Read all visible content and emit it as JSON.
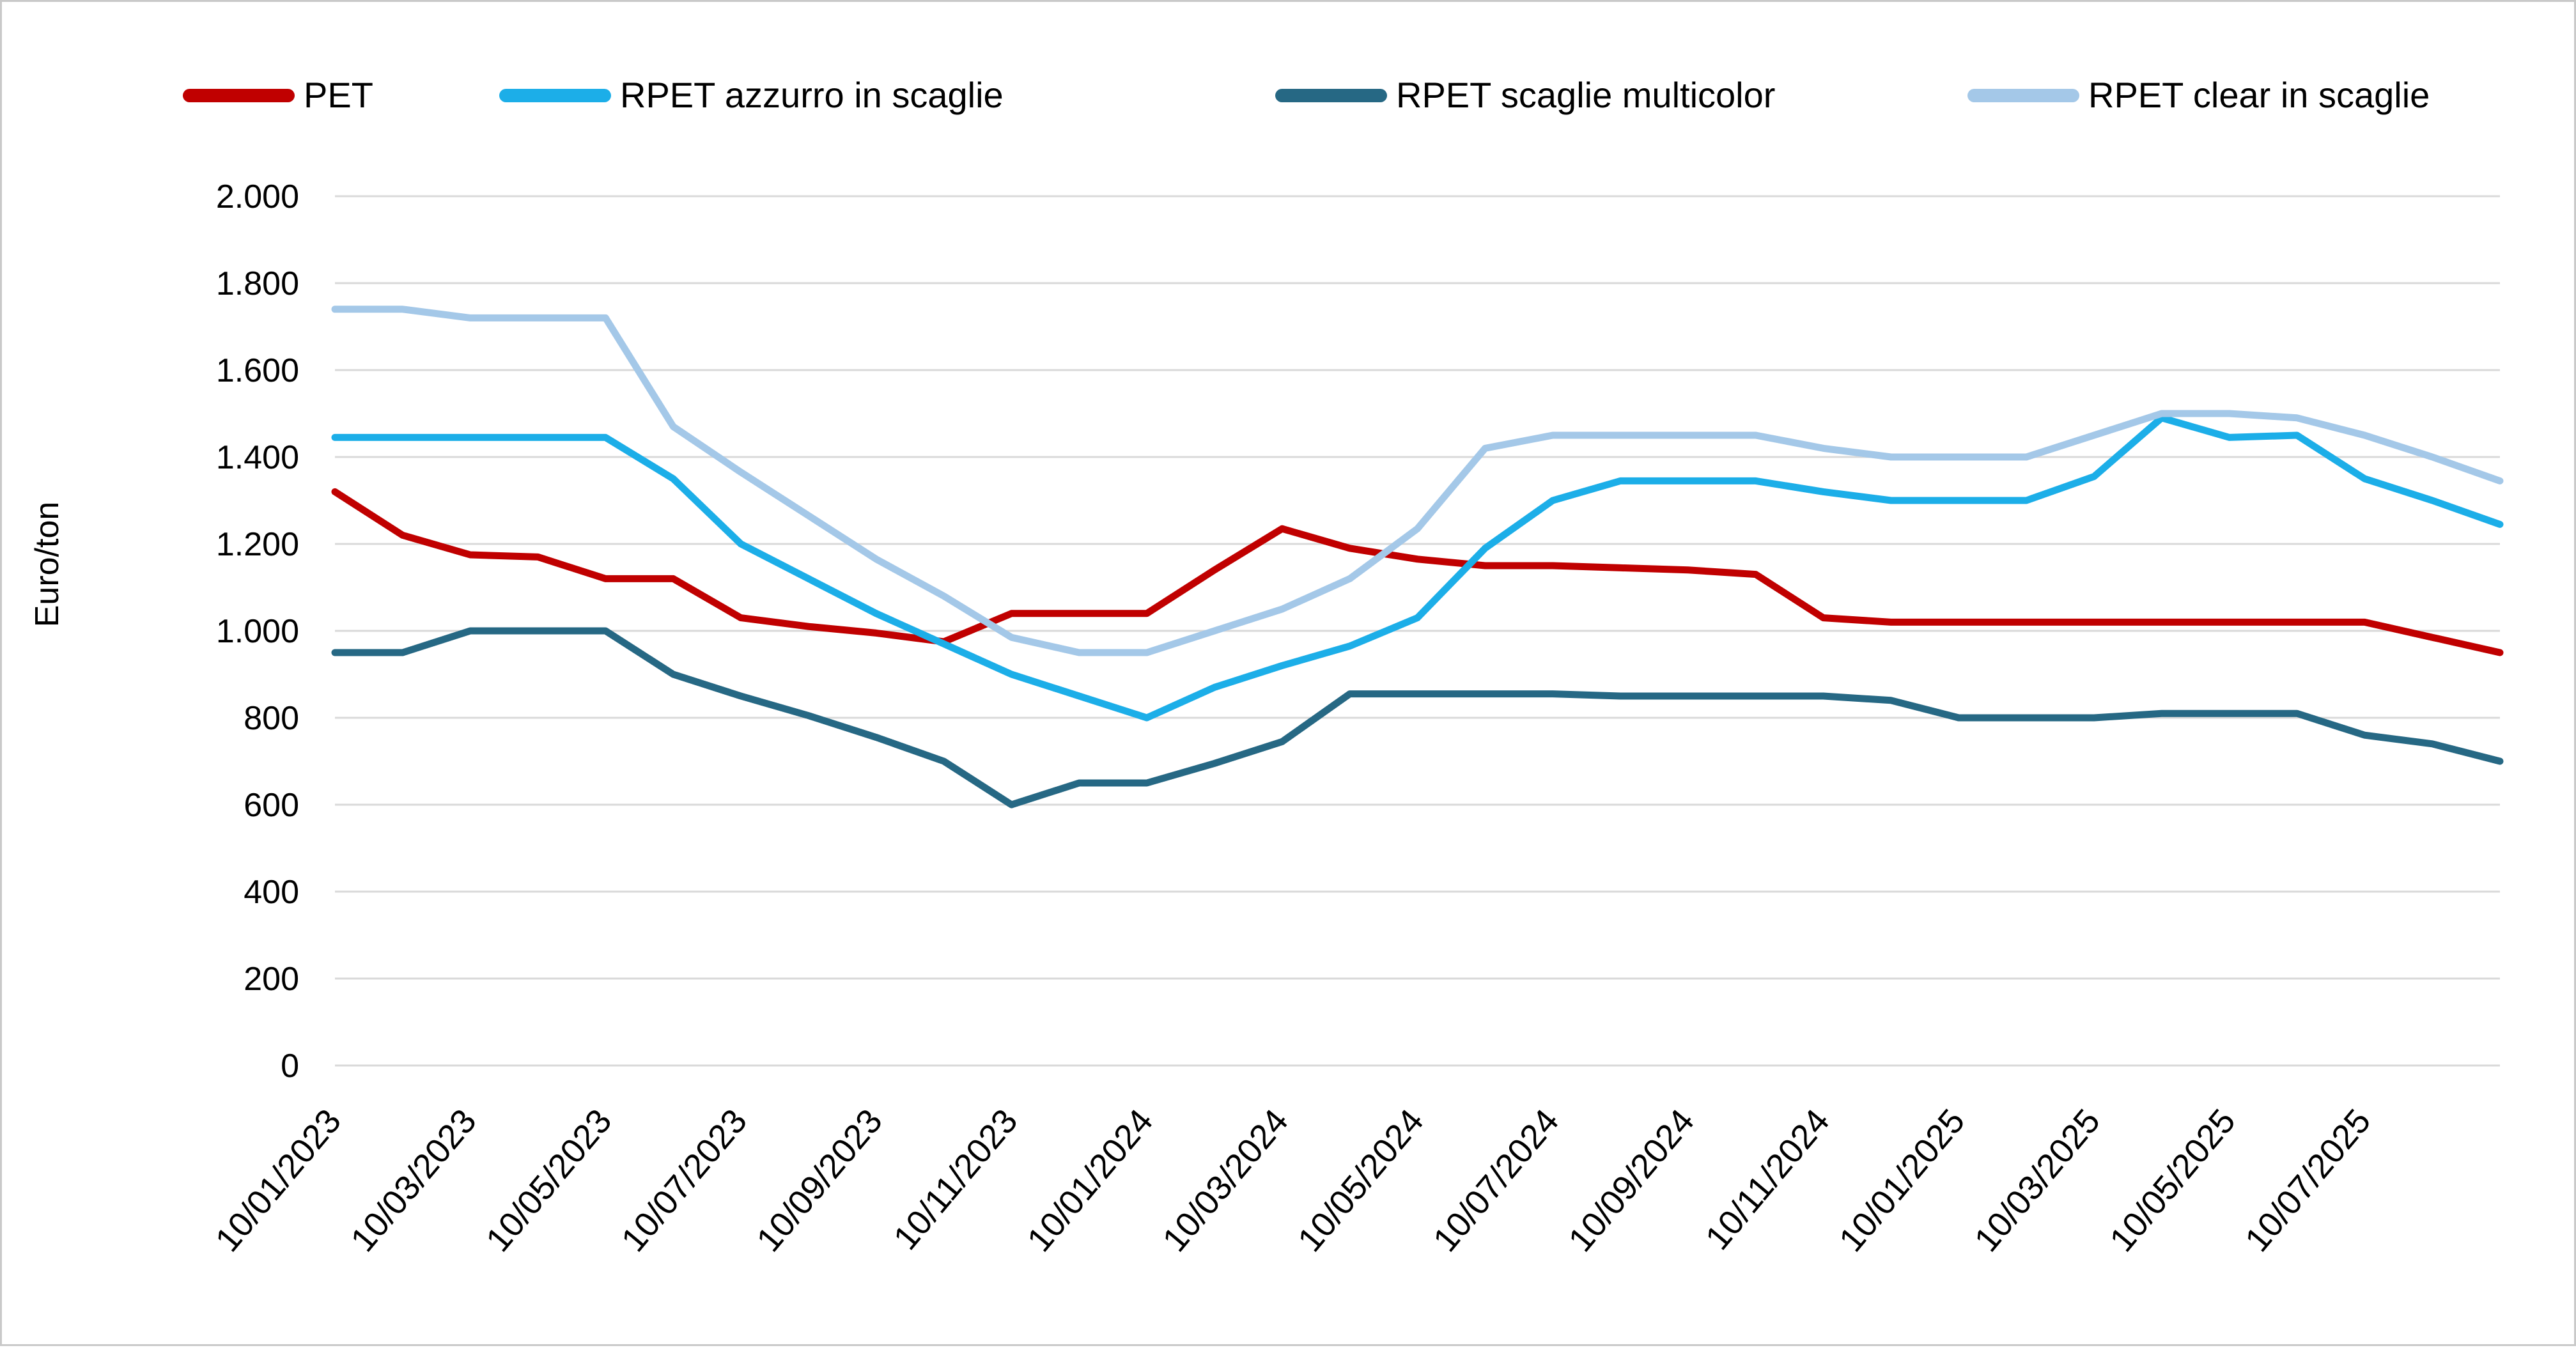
{
  "y_axis_title": "Euro/ton",
  "legend": [
    {
      "label": "PET",
      "color": "#c00000"
    },
    {
      "label": "RPET azzurro in scaglie",
      "color": "#1caee8"
    },
    {
      "label": "RPET scaglie multicolor",
      "color": "#266884"
    },
    {
      "label": "RPET clear in scaglie",
      "color": "#a4c8e8"
    }
  ],
  "chart_data": {
    "type": "line",
    "title": "",
    "xlabel": "",
    "ylabel": "Euro/ton",
    "ylim": [
      0,
      2000
    ],
    "grid": "horizontal",
    "legend_position": "top",
    "x_tick_labels": [
      "10/01/2023",
      "10/03/2023",
      "10/05/2023",
      "10/07/2023",
      "10/09/2023",
      "10/11/2023",
      "10/01/2024",
      "10/03/2024",
      "10/05/2024",
      "10/07/2024",
      "10/09/2024",
      "10/11/2024",
      "10/01/2025",
      "10/03/2025",
      "10/05/2025",
      "10/07/2025"
    ],
    "label_interval": 2,
    "categories": [
      "10/01/2023",
      "10/02/2023",
      "10/03/2023",
      "10/04/2023",
      "10/05/2023",
      "10/06/2023",
      "10/07/2023",
      "10/08/2023",
      "10/09/2023",
      "10/10/2023",
      "10/11/2023",
      "10/12/2023",
      "10/01/2024",
      "10/02/2024",
      "10/03/2024",
      "10/04/2024",
      "10/05/2024",
      "10/06/2024",
      "10/07/2024",
      "10/08/2024",
      "10/09/2024",
      "10/10/2024",
      "10/11/2024",
      "10/12/2024",
      "10/01/2025",
      "10/02/2025",
      "10/03/2025",
      "10/04/2025",
      "10/05/2025",
      "10/06/2025",
      "10/07/2025",
      "10/08/2025",
      "10/09/2025"
    ],
    "y_ticks": [
      {
        "value": 0,
        "label": "0"
      },
      {
        "value": 200,
        "label": "200"
      },
      {
        "value": 400,
        "label": "400"
      },
      {
        "value": 600,
        "label": "600"
      },
      {
        "value": 800,
        "label": "800"
      },
      {
        "value": 1000,
        "label": "1.000"
      },
      {
        "value": 1200,
        "label": "1.200"
      },
      {
        "value": 1400,
        "label": "1.400"
      },
      {
        "value": 1600,
        "label": "1.600"
      },
      {
        "value": 1800,
        "label": "1.800"
      },
      {
        "value": 2000,
        "label": "2.000"
      }
    ],
    "series": [
      {
        "name": "PET",
        "color": "#c00000",
        "values": [
          1320,
          1220,
          1175,
          1170,
          1120,
          1120,
          1030,
          1010,
          995,
          975,
          1040,
          1040,
          1040,
          1140,
          1235,
          1190,
          1165,
          1150,
          1150,
          1145,
          1140,
          1130,
          1030,
          1020,
          1020,
          1020,
          1020,
          1020,
          1020,
          1020,
          1020,
          985,
          950
        ]
      },
      {
        "name": "RPET azzurro in scaglie",
        "color": "#1caee8",
        "values": [
          1445,
          1445,
          1445,
          1445,
          1445,
          1350,
          1200,
          1120,
          1040,
          970,
          900,
          850,
          800,
          870,
          920,
          965,
          1030,
          1190,
          1300,
          1345,
          1345,
          1345,
          1320,
          1300,
          1300,
          1300,
          1355,
          1490,
          1445,
          1450,
          1350,
          1300,
          1245
        ]
      },
      {
        "name": "RPET scaglie multicolor",
        "color": "#266884",
        "values": [
          950,
          950,
          1000,
          1000,
          1000,
          900,
          850,
          805,
          755,
          700,
          600,
          650,
          650,
          695,
          745,
          855,
          855,
          855,
          855,
          850,
          850,
          850,
          850,
          840,
          800,
          800,
          800,
          810,
          810,
          810,
          760,
          740,
          700
        ]
      },
      {
        "name": "RPET clear in scaglie",
        "color": "#a4c8e8",
        "values": [
          1740,
          1740,
          1720,
          1720,
          1720,
          1470,
          1365,
          1265,
          1165,
          1080,
          985,
          950,
          950,
          1000,
          1050,
          1120,
          1235,
          1420,
          1450,
          1450,
          1450,
          1450,
          1420,
          1400,
          1400,
          1400,
          1450,
          1500,
          1500,
          1490,
          1450,
          1400,
          1345
        ]
      }
    ]
  }
}
